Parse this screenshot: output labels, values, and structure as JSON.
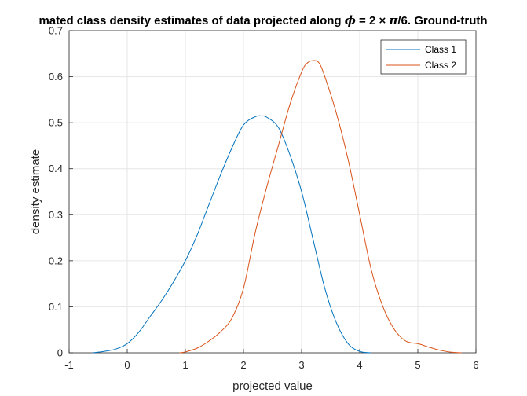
{
  "chart_data": {
    "type": "line",
    "title_parts": [
      "mated class density estimates of data projected along ",
      "ϕ",
      " = 2 × ",
      "π",
      "/6. Ground-truth"
    ],
    "xlabel": "projected value",
    "ylabel": "density estimate",
    "xlim": [
      -1,
      6
    ],
    "ylim": [
      0,
      0.7
    ],
    "xticks": [
      -1,
      0,
      1,
      2,
      3,
      4,
      5,
      6
    ],
    "yticks": [
      0,
      0.1,
      0.2,
      0.3,
      0.4,
      0.5,
      0.6,
      0.7
    ],
    "ytick_labels": [
      "0",
      "0.1",
      "0.2",
      "0.3",
      "0.4",
      "0.5",
      "0.6",
      "0.7"
    ],
    "grid": true,
    "legend_position": "top-right",
    "series": [
      {
        "name": "Class 1",
        "color": "#0072BD",
        "x": [
          -0.6,
          -0.4,
          -0.2,
          0.0,
          0.2,
          0.4,
          0.6,
          0.8,
          1.0,
          1.2,
          1.4,
          1.6,
          1.8,
          2.0,
          2.2,
          2.3,
          2.4,
          2.6,
          2.8,
          3.0,
          3.2,
          3.4,
          3.6,
          3.8,
          4.0,
          4.2
        ],
        "y": [
          0.0,
          0.003,
          0.008,
          0.02,
          0.045,
          0.08,
          0.115,
          0.155,
          0.2,
          0.255,
          0.32,
          0.385,
          0.445,
          0.495,
          0.513,
          0.515,
          0.512,
          0.49,
          0.43,
          0.35,
          0.245,
          0.14,
          0.065,
          0.02,
          0.003,
          0.0
        ]
      },
      {
        "name": "Class 2",
        "color": "#D95319",
        "x": [
          0.9,
          1.0,
          1.2,
          1.4,
          1.6,
          1.8,
          2.0,
          2.2,
          2.4,
          2.6,
          2.8,
          3.0,
          3.1,
          3.2,
          3.3,
          3.4,
          3.6,
          3.8,
          4.0,
          4.2,
          4.4,
          4.6,
          4.8,
          5.0,
          5.2,
          5.4,
          5.6,
          5.75
        ],
        "y": [
          0.0,
          0.002,
          0.01,
          0.025,
          0.045,
          0.075,
          0.14,
          0.26,
          0.36,
          0.45,
          0.54,
          0.61,
          0.63,
          0.635,
          0.63,
          0.6,
          0.52,
          0.42,
          0.3,
          0.18,
          0.1,
          0.05,
          0.025,
          0.02,
          0.012,
          0.005,
          0.001,
          0.0
        ]
      }
    ]
  }
}
